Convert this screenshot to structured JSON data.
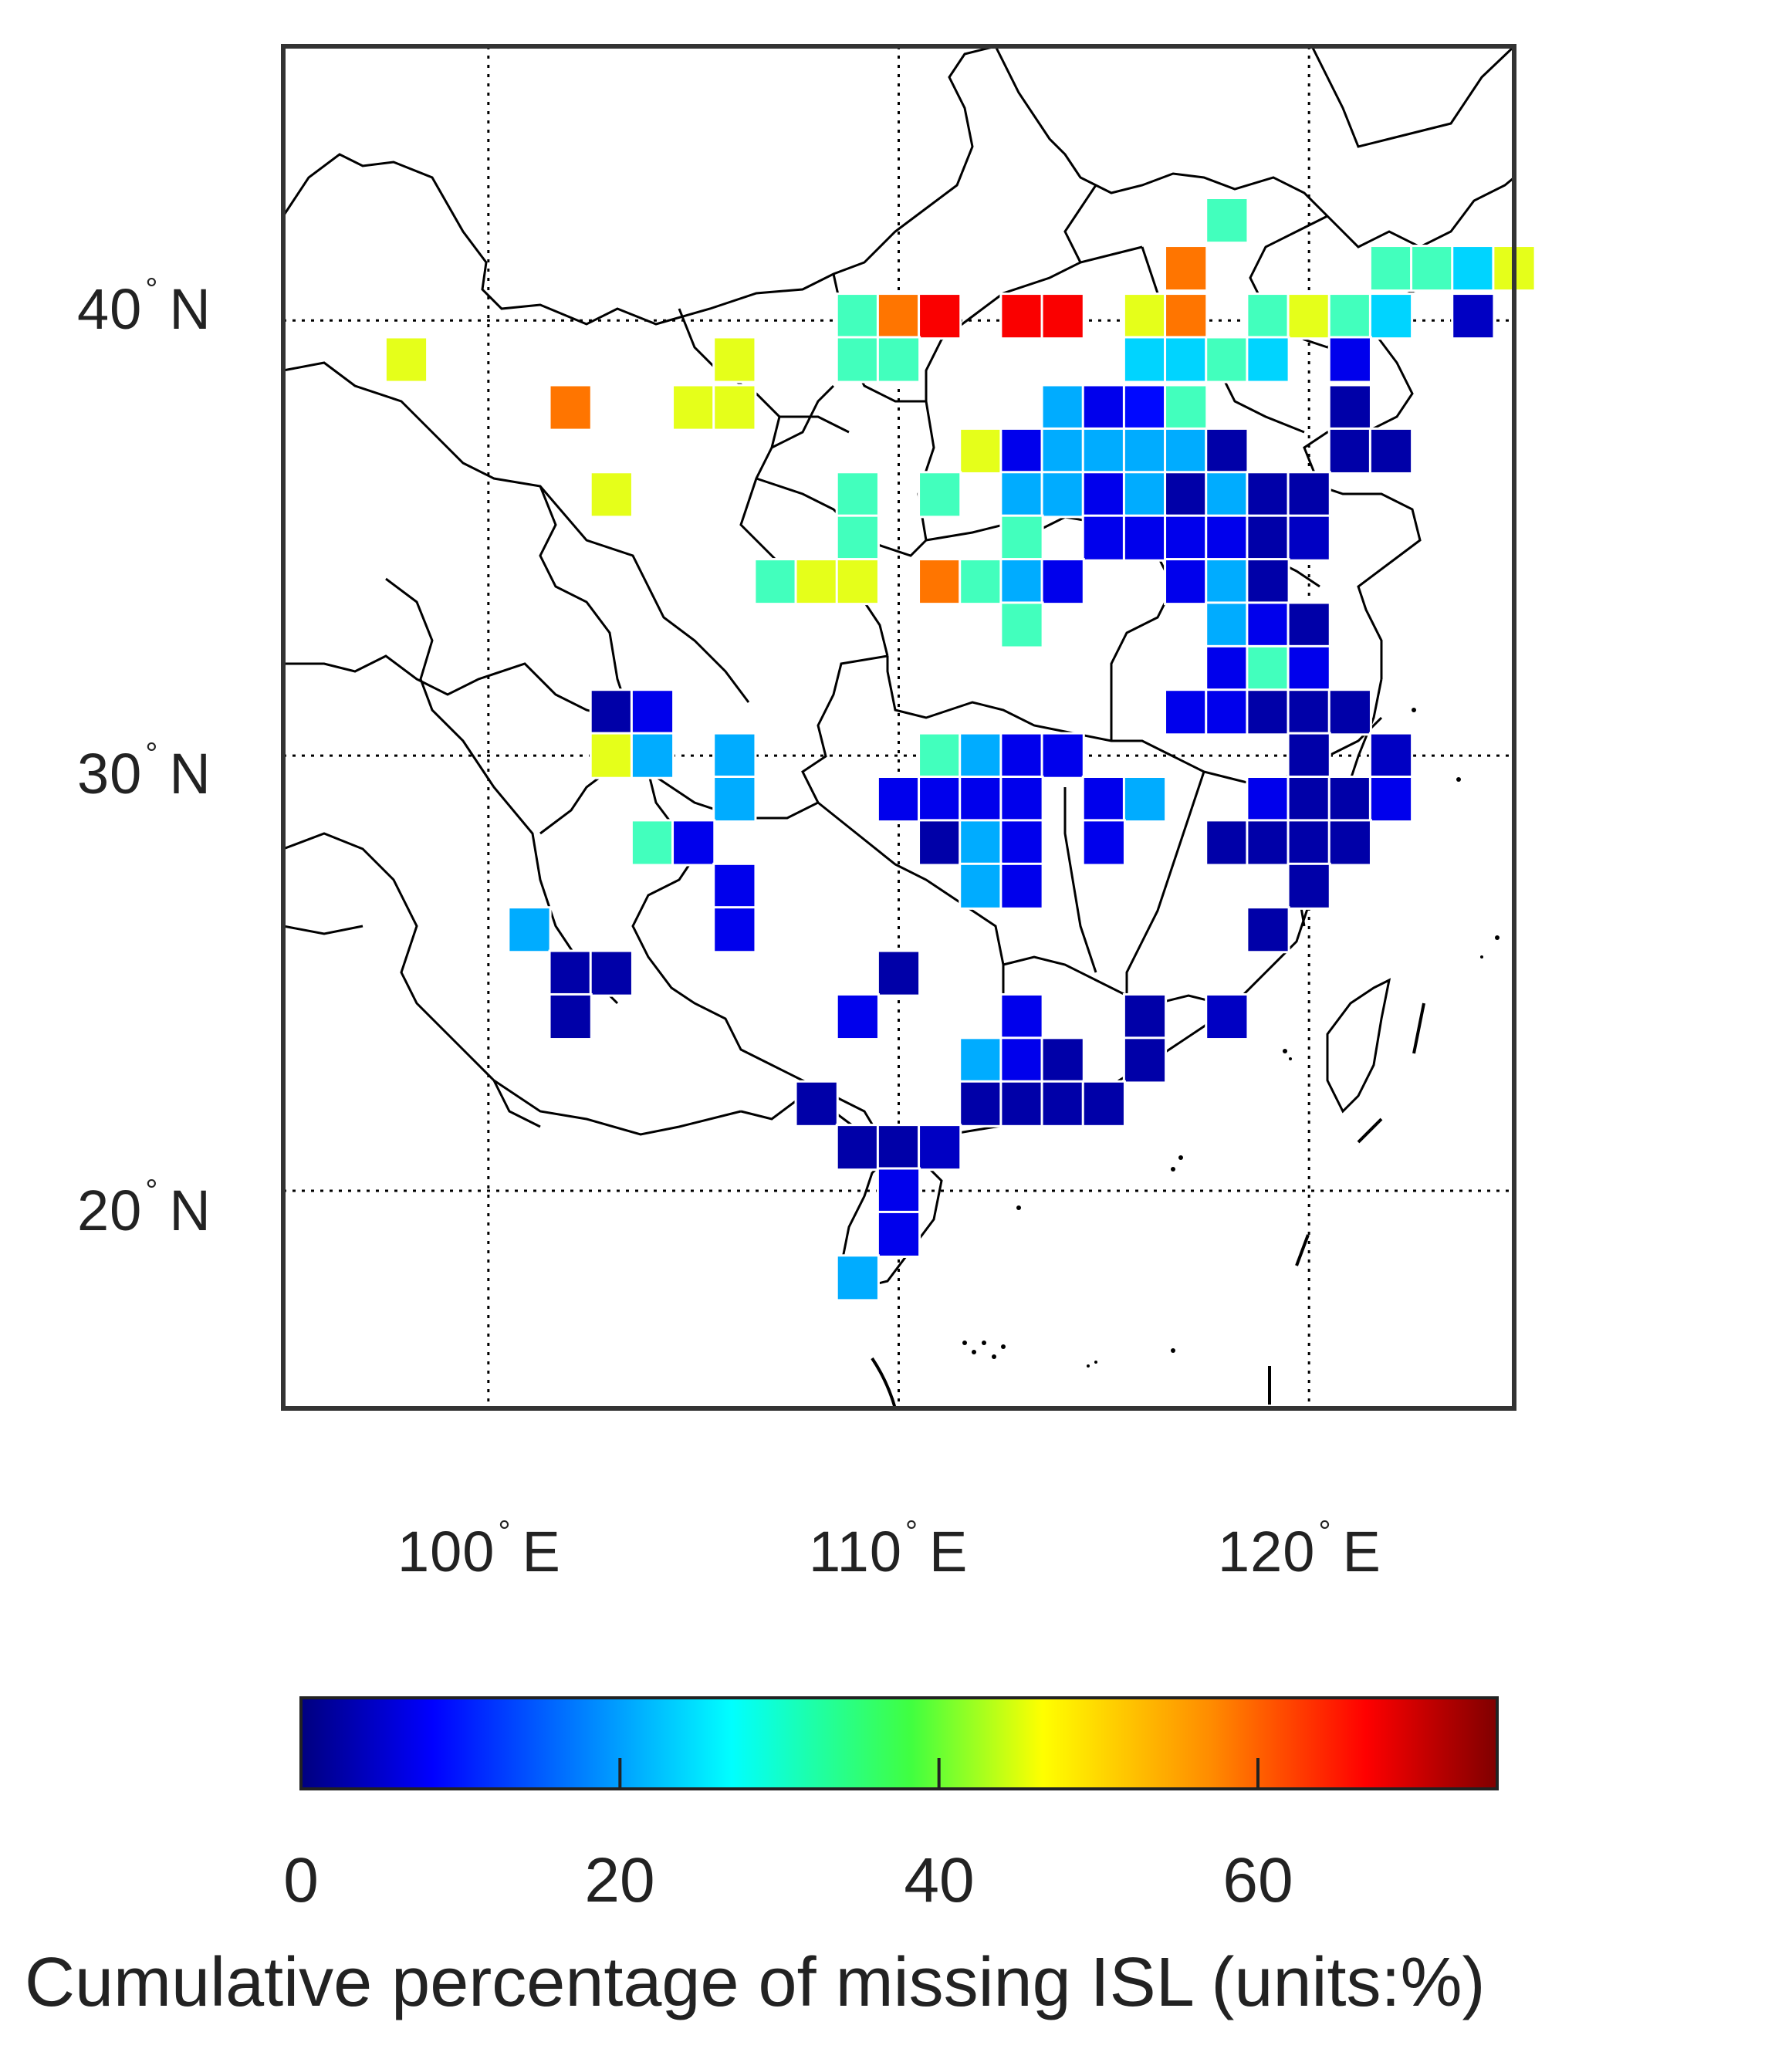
{
  "map": {
    "lat_labels": [
      {
        "value": "40",
        "suffix": "N"
      },
      {
        "value": "30",
        "suffix": "N"
      },
      {
        "value": "20",
        "suffix": "N"
      }
    ],
    "lon_labels": [
      {
        "value": "100",
        "suffix": "E"
      },
      {
        "value": "110",
        "suffix": "E"
      },
      {
        "value": "120",
        "suffix": "E"
      }
    ],
    "degree_symbol": "°",
    "lon_range": [
      95,
      125
    ],
    "lat_range": [
      15,
      46.3
    ],
    "gridlines": "dotted"
  },
  "colorbar": {
    "colormap": "jet",
    "range": [
      0,
      75
    ],
    "ticks": [
      "0",
      "20",
      "40",
      "60"
    ],
    "tick_values": [
      0,
      20,
      40,
      60
    ],
    "label": "Cumulative percentage of missing ISL (units:%)"
  },
  "chart_data": {
    "type": "heatmap",
    "units": "%",
    "cell_size_deg": 1,
    "cells": [
      {
        "lon": 118,
        "lat": 42.3,
        "value": 33
      },
      {
        "lon": 117,
        "lat": 41.2,
        "value": 57
      },
      {
        "lon": 122,
        "lat": 41.2,
        "value": 33
      },
      {
        "lon": 123,
        "lat": 41.2,
        "value": 33
      },
      {
        "lon": 124,
        "lat": 41.2,
        "value": 25
      },
      {
        "lon": 125,
        "lat": 41.2,
        "value": 45
      },
      {
        "lon": 109,
        "lat": 40.1,
        "value": 33
      },
      {
        "lon": 110,
        "lat": 40.1,
        "value": 57
      },
      {
        "lon": 111,
        "lat": 40.1,
        "value": 66
      },
      {
        "lon": 113,
        "lat": 40.1,
        "value": 66
      },
      {
        "lon": 114,
        "lat": 40.1,
        "value": 66
      },
      {
        "lon": 116,
        "lat": 40.1,
        "value": 45
      },
      {
        "lon": 117,
        "lat": 40.1,
        "value": 57
      },
      {
        "lon": 119,
        "lat": 40.1,
        "value": 33
      },
      {
        "lon": 120,
        "lat": 40.1,
        "value": 45
      },
      {
        "lon": 121,
        "lat": 40.1,
        "value": 33
      },
      {
        "lon": 122,
        "lat": 40.1,
        "value": 25
      },
      {
        "lon": 124,
        "lat": 40.1,
        "value": 5
      },
      {
        "lon": 98,
        "lat": 39.1,
        "value": 45
      },
      {
        "lon": 106,
        "lat": 39.1,
        "value": 45
      },
      {
        "lon": 109,
        "lat": 39.1,
        "value": 33
      },
      {
        "lon": 110,
        "lat": 39.1,
        "value": 33
      },
      {
        "lon": 116,
        "lat": 39.1,
        "value": 25
      },
      {
        "lon": 117,
        "lat": 39.1,
        "value": 25
      },
      {
        "lon": 118,
        "lat": 39.1,
        "value": 33
      },
      {
        "lon": 119,
        "lat": 39.1,
        "value": 25
      },
      {
        "lon": 121,
        "lat": 39.1,
        "value": 8
      },
      {
        "lon": 102,
        "lat": 38.0,
        "value": 57
      },
      {
        "lon": 105,
        "lat": 38.0,
        "value": 45
      },
      {
        "lon": 106,
        "lat": 38.0,
        "value": 45
      },
      {
        "lon": 114,
        "lat": 38.0,
        "value": 22
      },
      {
        "lon": 115,
        "lat": 38.0,
        "value": 8
      },
      {
        "lon": 116,
        "lat": 38.0,
        "value": 10
      },
      {
        "lon": 117,
        "lat": 38.0,
        "value": 33
      },
      {
        "lon": 121,
        "lat": 38.0,
        "value": 3
      },
      {
        "lon": 112,
        "lat": 37.0,
        "value": 45
      },
      {
        "lon": 113,
        "lat": 37.0,
        "value": 8
      },
      {
        "lon": 114,
        "lat": 37.0,
        "value": 22
      },
      {
        "lon": 115,
        "lat": 37.0,
        "value": 22
      },
      {
        "lon": 116,
        "lat": 37.0,
        "value": 22
      },
      {
        "lon": 117,
        "lat": 37.0,
        "value": 22
      },
      {
        "lon": 118,
        "lat": 37.0,
        "value": 3
      },
      {
        "lon": 121,
        "lat": 37.0,
        "value": 3
      },
      {
        "lon": 122,
        "lat": 37.0,
        "value": 3
      },
      {
        "lon": 103,
        "lat": 36.0,
        "value": 45
      },
      {
        "lon": 109,
        "lat": 36.0,
        "value": 33
      },
      {
        "lon": 111,
        "lat": 36.0,
        "value": 33
      },
      {
        "lon": 113,
        "lat": 36.0,
        "value": 22
      },
      {
        "lon": 114,
        "lat": 36.0,
        "value": 22
      },
      {
        "lon": 115,
        "lat": 36.0,
        "value": 8
      },
      {
        "lon": 116,
        "lat": 36.0,
        "value": 22
      },
      {
        "lon": 117,
        "lat": 36.0,
        "value": 3
      },
      {
        "lon": 118,
        "lat": 36.0,
        "value": 22
      },
      {
        "lon": 119,
        "lat": 36.0,
        "value": 3
      },
      {
        "lon": 120,
        "lat": 36.0,
        "value": 3
      },
      {
        "lon": 109,
        "lat": 35.0,
        "value": 33
      },
      {
        "lon": 113,
        "lat": 35.0,
        "value": 33
      },
      {
        "lon": 115,
        "lat": 35.0,
        "value": 8
      },
      {
        "lon": 116,
        "lat": 35.0,
        "value": 8
      },
      {
        "lon": 117,
        "lat": 35.0,
        "value": 8
      },
      {
        "lon": 118,
        "lat": 35.0,
        "value": 8
      },
      {
        "lon": 119,
        "lat": 35.0,
        "value": 3
      },
      {
        "lon": 120,
        "lat": 35.0,
        "value": 5
      },
      {
        "lon": 107,
        "lat": 34.0,
        "value": 33
      },
      {
        "lon": 108,
        "lat": 34.0,
        "value": 45
      },
      {
        "lon": 109,
        "lat": 34.0,
        "value": 45
      },
      {
        "lon": 111,
        "lat": 34.0,
        "value": 57
      },
      {
        "lon": 112,
        "lat": 34.0,
        "value": 33
      },
      {
        "lon": 113,
        "lat": 34.0,
        "value": 22
      },
      {
        "lon": 114,
        "lat": 34.0,
        "value": 8
      },
      {
        "lon": 117,
        "lat": 34.0,
        "value": 8
      },
      {
        "lon": 118,
        "lat": 34.0,
        "value": 22
      },
      {
        "lon": 119,
        "lat": 34.0,
        "value": 3
      },
      {
        "lon": 113,
        "lat": 33.0,
        "value": 33
      },
      {
        "lon": 118,
        "lat": 33.0,
        "value": 22
      },
      {
        "lon": 119,
        "lat": 33.0,
        "value": 8
      },
      {
        "lon": 120,
        "lat": 33.0,
        "value": 3
      },
      {
        "lon": 118,
        "lat": 32.0,
        "value": 8
      },
      {
        "lon": 119,
        "lat": 32.0,
        "value": 33
      },
      {
        "lon": 120,
        "lat": 32.0,
        "value": 8
      },
      {
        "lon": 103,
        "lat": 31.0,
        "value": 3
      },
      {
        "lon": 104,
        "lat": 31.0,
        "value": 8
      },
      {
        "lon": 117,
        "lat": 31.0,
        "value": 8
      },
      {
        "lon": 118,
        "lat": 31.0,
        "value": 8
      },
      {
        "lon": 119,
        "lat": 31.0,
        "value": 3
      },
      {
        "lon": 120,
        "lat": 31.0,
        "value": 3
      },
      {
        "lon": 121,
        "lat": 31.0,
        "value": 3
      },
      {
        "lon": 103,
        "lat": 30.0,
        "value": 45
      },
      {
        "lon": 104,
        "lat": 30.0,
        "value": 22
      },
      {
        "lon": 106,
        "lat": 30.0,
        "value": 22
      },
      {
        "lon": 111,
        "lat": 30.0,
        "value": 33
      },
      {
        "lon": 112,
        "lat": 30.0,
        "value": 22
      },
      {
        "lon": 113,
        "lat": 30.0,
        "value": 8
      },
      {
        "lon": 114,
        "lat": 30.0,
        "value": 8
      },
      {
        "lon": 120,
        "lat": 30.0,
        "value": 3
      },
      {
        "lon": 122,
        "lat": 30.0,
        "value": 5
      },
      {
        "lon": 106,
        "lat": 29.0,
        "value": 22
      },
      {
        "lon": 110,
        "lat": 29.0,
        "value": 8
      },
      {
        "lon": 111,
        "lat": 29.0,
        "value": 8
      },
      {
        "lon": 112,
        "lat": 29.0,
        "value": 8
      },
      {
        "lon": 113,
        "lat": 29.0,
        "value": 8
      },
      {
        "lon": 115,
        "lat": 29.0,
        "value": 8
      },
      {
        "lon": 116,
        "lat": 29.0,
        "value": 22
      },
      {
        "lon": 119,
        "lat": 29.0,
        "value": 8
      },
      {
        "lon": 120,
        "lat": 29.0,
        "value": 3
      },
      {
        "lon": 121,
        "lat": 29.0,
        "value": 3
      },
      {
        "lon": 122,
        "lat": 29.0,
        "value": 8
      },
      {
        "lon": 104,
        "lat": 28.0,
        "value": 33
      },
      {
        "lon": 105,
        "lat": 28.0,
        "value": 8
      },
      {
        "lon": 111,
        "lat": 28.0,
        "value": 3
      },
      {
        "lon": 112,
        "lat": 28.0,
        "value": 22
      },
      {
        "lon": 113,
        "lat": 28.0,
        "value": 8
      },
      {
        "lon": 115,
        "lat": 28.0,
        "value": 8
      },
      {
        "lon": 118,
        "lat": 28.0,
        "value": 3
      },
      {
        "lon": 119,
        "lat": 28.0,
        "value": 3
      },
      {
        "lon": 120,
        "lat": 28.0,
        "value": 3
      },
      {
        "lon": 121,
        "lat": 28.0,
        "value": 3
      },
      {
        "lon": 106,
        "lat": 27.0,
        "value": 8
      },
      {
        "lon": 112,
        "lat": 27.0,
        "value": 22
      },
      {
        "lon": 113,
        "lat": 27.0,
        "value": 8
      },
      {
        "lon": 120,
        "lat": 27.0,
        "value": 3
      },
      {
        "lon": 101,
        "lat": 26.0,
        "value": 22
      },
      {
        "lon": 106,
        "lat": 26.0,
        "value": 8
      },
      {
        "lon": 119,
        "lat": 26.0,
        "value": 3
      },
      {
        "lon": 102,
        "lat": 25.0,
        "value": 3
      },
      {
        "lon": 103,
        "lat": 25.0,
        "value": 3
      },
      {
        "lon": 110,
        "lat": 25.0,
        "value": 3
      },
      {
        "lon": 102,
        "lat": 24.0,
        "value": 3
      },
      {
        "lon": 109,
        "lat": 24.0,
        "value": 8
      },
      {
        "lon": 113,
        "lat": 24.0,
        "value": 8
      },
      {
        "lon": 116,
        "lat": 24.0,
        "value": 3
      },
      {
        "lon": 118,
        "lat": 24.0,
        "value": 5
      },
      {
        "lon": 112,
        "lat": 23.0,
        "value": 22
      },
      {
        "lon": 113,
        "lat": 23.0,
        "value": 8
      },
      {
        "lon": 114,
        "lat": 23.0,
        "value": 3
      },
      {
        "lon": 116,
        "lat": 23.0,
        "value": 3
      },
      {
        "lon": 108,
        "lat": 22.0,
        "value": 3
      },
      {
        "lon": 112,
        "lat": 22.0,
        "value": 3
      },
      {
        "lon": 113,
        "lat": 22.0,
        "value": 3
      },
      {
        "lon": 114,
        "lat": 22.0,
        "value": 3
      },
      {
        "lon": 115,
        "lat": 22.0,
        "value": 3
      },
      {
        "lon": 109,
        "lat": 21.0,
        "value": 3
      },
      {
        "lon": 110,
        "lat": 21.0,
        "value": 3
      },
      {
        "lon": 111,
        "lat": 21.0,
        "value": 5
      },
      {
        "lon": 110,
        "lat": 20.0,
        "value": 8
      },
      {
        "lon": 110,
        "lat": 19.0,
        "value": 8
      },
      {
        "lon": 109,
        "lat": 18.0,
        "value": 22
      }
    ]
  }
}
